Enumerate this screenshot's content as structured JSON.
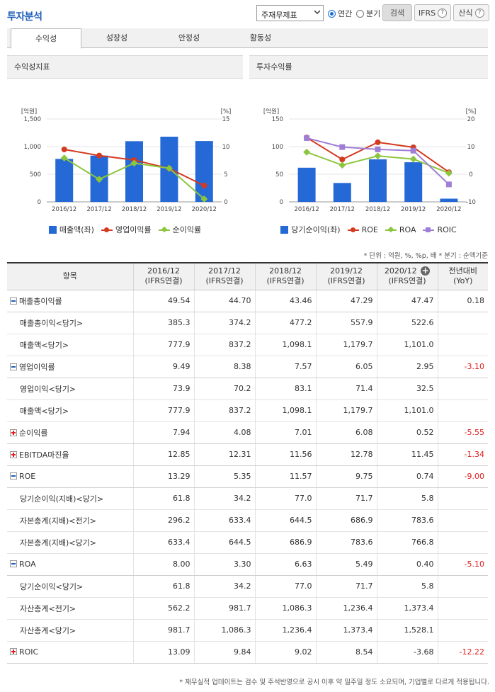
{
  "header": {
    "title": "투자분석",
    "select_value": "주재무제표",
    "radio_annual": "연간",
    "radio_quarter": "분기",
    "search_label": "검색",
    "ifrs_label": "IFRS",
    "formula_label": "산식",
    "help_glyph": "?"
  },
  "tabs": [
    {
      "label": "수익성"
    },
    {
      "label": "성장성"
    },
    {
      "label": "안정성"
    },
    {
      "label": "활동성"
    }
  ],
  "chart_data": [
    {
      "type": "bar",
      "panel_title": "수익성지표",
      "categories": [
        "2016/12",
        "2017/12",
        "2018/12",
        "2019/12",
        "2020/12"
      ],
      "left_unit": "[억원]",
      "right_unit": "[%]",
      "left_ticks": [
        "1,500",
        "1,000",
        "500",
        "0"
      ],
      "right_ticks": [
        "15",
        "10",
        "5",
        "0"
      ],
      "ylim_left": [
        0,
        1500
      ],
      "ylim_right": [
        0,
        15
      ],
      "series": [
        {
          "name": "매출액(좌)",
          "kind": "bar",
          "axis": "left",
          "color": "#2569d6",
          "values": [
            777.9,
            837.2,
            1098.1,
            1179.7,
            1101.0
          ]
        },
        {
          "name": "영업이익률",
          "kind": "line",
          "marker": "circle",
          "axis": "right",
          "color": "#d43a1f",
          "values": [
            9.49,
            8.38,
            7.57,
            6.05,
            2.95
          ]
        },
        {
          "name": "순이익률",
          "kind": "line",
          "marker": "diamond",
          "axis": "right",
          "color": "#8cc63f",
          "values": [
            7.94,
            4.08,
            7.01,
            6.08,
            0.52
          ]
        }
      ]
    },
    {
      "type": "bar",
      "panel_title": "투자수익률",
      "categories": [
        "2016/12",
        "2017/12",
        "2018/12",
        "2019/12",
        "2020/12"
      ],
      "left_unit": "[억원]",
      "right_unit": "[%]",
      "left_ticks": [
        "150",
        "100",
        "50",
        "0"
      ],
      "right_ticks": [
        "20",
        "10",
        "0",
        "-10"
      ],
      "ylim_left": [
        0,
        150
      ],
      "ylim_right": [
        -10,
        20
      ],
      "series": [
        {
          "name": "당기순이익(좌)",
          "kind": "bar",
          "axis": "left",
          "color": "#2569d6",
          "values": [
            61.8,
            34.2,
            77.0,
            71.7,
            5.8
          ]
        },
        {
          "name": "ROE",
          "kind": "line",
          "marker": "circle",
          "axis": "right",
          "color": "#d43a1f",
          "values": [
            13.29,
            5.35,
            11.57,
            9.75,
            0.74
          ]
        },
        {
          "name": "ROA",
          "kind": "line",
          "marker": "diamond",
          "axis": "right",
          "color": "#8cc63f",
          "values": [
            8.0,
            3.3,
            6.63,
            5.49,
            0.4
          ]
        },
        {
          "name": "ROIC",
          "kind": "line",
          "marker": "square",
          "axis": "right",
          "color": "#a07ed6",
          "values": [
            13.09,
            9.84,
            9.02,
            8.54,
            -3.68
          ]
        }
      ]
    }
  ],
  "unit_note": "* 단위 : 억원, %, %p, 배   * 분기 : 순액기준",
  "table": {
    "header_item": "항목",
    "columns": [
      {
        "period": "2016/12",
        "basis": "(IFRS연결)"
      },
      {
        "period": "2017/12",
        "basis": "(IFRS연결)"
      },
      {
        "period": "2018/12",
        "basis": "(IFRS연결)"
      },
      {
        "period": "2019/12",
        "basis": "(IFRS연결)"
      },
      {
        "period": "2020/12",
        "basis": "(IFRS연결)"
      }
    ],
    "yoy_label": "전년대비",
    "yoy_sub": "(YoY)",
    "rows": [
      {
        "label": "매출총이익률",
        "type": "group",
        "toggle": "minus",
        "values": [
          "49.54",
          "44.70",
          "43.46",
          "47.29",
          "47.47"
        ],
        "yoy": "0.18",
        "neg": false
      },
      {
        "label": "매출총이익<당기>",
        "type": "sub",
        "values": [
          "385.3",
          "374.2",
          "477.2",
          "557.9",
          "522.6"
        ],
        "yoy": "",
        "neg": false
      },
      {
        "label": "매출액<당기>",
        "type": "sub",
        "values": [
          "777.9",
          "837.2",
          "1,098.1",
          "1,179.7",
          "1,101.0"
        ],
        "yoy": "",
        "neg": false
      },
      {
        "label": "영업이익률",
        "type": "group",
        "toggle": "minus",
        "values": [
          "9.49",
          "8.38",
          "7.57",
          "6.05",
          "2.95"
        ],
        "yoy": "-3.10",
        "neg": true
      },
      {
        "label": "영업이익<당기>",
        "type": "sub",
        "values": [
          "73.9",
          "70.2",
          "83.1",
          "71.4",
          "32.5"
        ],
        "yoy": "",
        "neg": false
      },
      {
        "label": "매출액<당기>",
        "type": "sub",
        "values": [
          "777.9",
          "837.2",
          "1,098.1",
          "1,179.7",
          "1,101.0"
        ],
        "yoy": "",
        "neg": false
      },
      {
        "label": "순이익률",
        "type": "group",
        "toggle": "plus",
        "values": [
          "7.94",
          "4.08",
          "7.01",
          "6.08",
          "0.52"
        ],
        "yoy": "-5.55",
        "neg": true
      },
      {
        "label": "EBITDA마진율",
        "type": "group",
        "toggle": "plus",
        "values": [
          "12.85",
          "12.31",
          "11.56",
          "12.78",
          "11.45"
        ],
        "yoy": "-1.34",
        "neg": true
      },
      {
        "label": "ROE",
        "type": "group",
        "toggle": "minus",
        "values": [
          "13.29",
          "5.35",
          "11.57",
          "9.75",
          "0.74"
        ],
        "yoy": "-9.00",
        "neg": true
      },
      {
        "label": "당기순이익(지배)<당기>",
        "type": "sub",
        "values": [
          "61.8",
          "34.2",
          "77.0",
          "71.7",
          "5.8"
        ],
        "yoy": "",
        "neg": false
      },
      {
        "label": "자본총계(지배)<전기>",
        "type": "sub",
        "values": [
          "296.2",
          "633.4",
          "644.5",
          "686.9",
          "783.6"
        ],
        "yoy": "",
        "neg": false
      },
      {
        "label": "자본총계(지배)<당기>",
        "type": "sub",
        "values": [
          "633.4",
          "644.5",
          "686.9",
          "783.6",
          "766.8"
        ],
        "yoy": "",
        "neg": false
      },
      {
        "label": "ROA",
        "type": "group",
        "toggle": "minus",
        "values": [
          "8.00",
          "3.30",
          "6.63",
          "5.49",
          "0.40"
        ],
        "yoy": "-5.10",
        "neg": true
      },
      {
        "label": "당기순이익<당기>",
        "type": "sub",
        "values": [
          "61.8",
          "34.2",
          "77.0",
          "71.7",
          "5.8"
        ],
        "yoy": "",
        "neg": false
      },
      {
        "label": "자산총계<전기>",
        "type": "sub",
        "values": [
          "562.2",
          "981.7",
          "1,086.3",
          "1,236.4",
          "1,373.4"
        ],
        "yoy": "",
        "neg": false
      },
      {
        "label": "자산총계<당기>",
        "type": "sub",
        "values": [
          "981.7",
          "1,086.3",
          "1,236.4",
          "1,373.4",
          "1,528.1"
        ],
        "yoy": "",
        "neg": false
      },
      {
        "label": "ROIC",
        "type": "group",
        "toggle": "plus",
        "values": [
          "13.09",
          "9.84",
          "9.02",
          "8.54",
          "-3.68"
        ],
        "yoy": "-12.22",
        "neg": true
      }
    ]
  },
  "footnote": "* 재무실적 업데이트는 검수 및 주석반영으로 공시 이후 약 일주일 정도 소요되며, 기업별로 다르게 적용됩니다."
}
